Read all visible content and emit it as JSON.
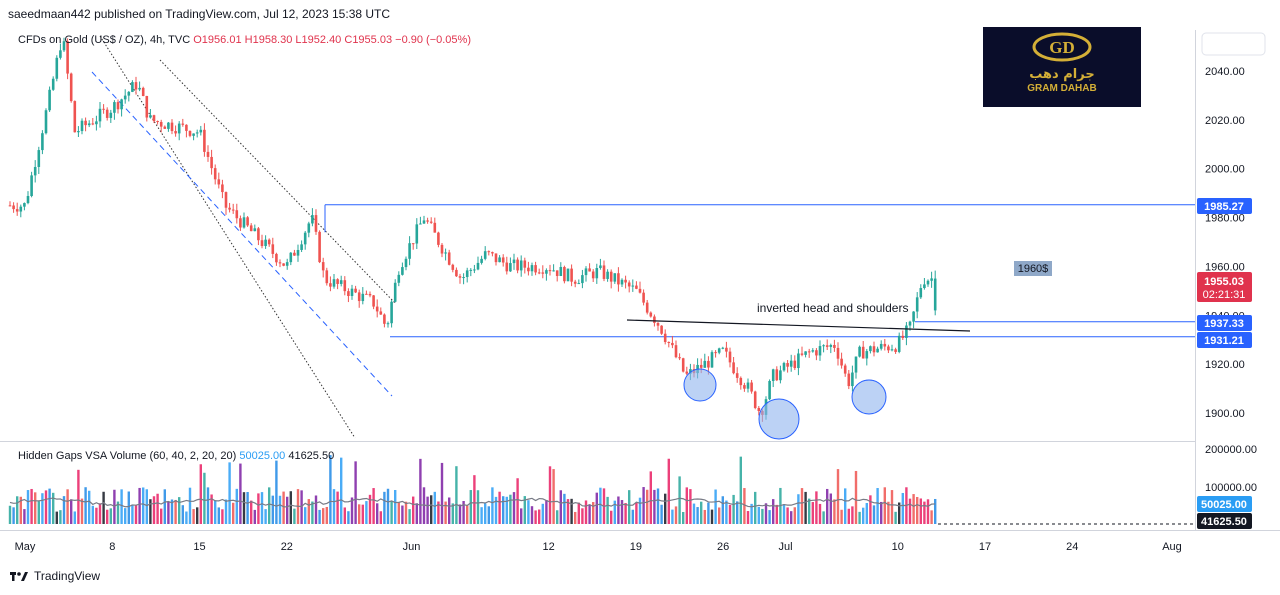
{
  "header": {
    "published_line": "saeedmaan442 published on TradingView.com, Jul 12, 2023 15:38 UTC"
  },
  "legend": {
    "symbol": "CFDs on Gold (US$ / OZ), 4h, TVC",
    "open": "O1956.01",
    "high": "H1958.30",
    "low": "L1952.40",
    "close": "C1955.03",
    "change": "−0.90 (−0.05%)"
  },
  "volume_legend": {
    "name": "Hidden Gaps VSA Volume (60, 40, 2, 20, 20)",
    "value1": "50025.00",
    "value2": "41625.50"
  },
  "logo": {
    "arabic": "جرام دهب",
    "english": "GRAM DAHAB",
    "monogram": "GD"
  },
  "annotation": {
    "pattern_label": "inverted head and shoulders",
    "price_note": "1960$"
  },
  "price_tags": {
    "resistance": "1985.27",
    "last_price": "1955.03",
    "countdown": "02:21:31",
    "neckline_upper": "1937.33",
    "neckline_lower": "1931.21",
    "vol_value1": "50025.00",
    "vol_value2": "41625.50"
  },
  "footer": {
    "brand": "TradingView"
  },
  "colors": {
    "up": "#26a69a",
    "down": "#ef5350",
    "level_line": "#2962ff",
    "tag_blue": "#2962ff",
    "tag_red": "#e0334d",
    "circle_fill": "#90b4ee",
    "logo_gold": "#d4af37"
  },
  "chart_data": {
    "type": "candlestick",
    "y_axis_ticks": [
      "2040.00",
      "2020.00",
      "2000.00",
      "1980.00",
      "1960.00",
      "1940.00",
      "1920.00",
      "1900.00"
    ],
    "x_axis_ticks": [
      "May",
      "8",
      "15",
      "22",
      "Jun",
      "12",
      "19",
      "26",
      "Jul",
      "10",
      "17",
      "24",
      "Aug"
    ],
    "volume_axis_ticks": [
      "200000.00",
      "100000.00"
    ],
    "ylim": [
      1888,
      2058
    ],
    "levels": [
      1985.27,
      1937.33,
      1931.21
    ],
    "series_close_path": [
      {
        "date": "2023-05-01",
        "close": 1985
      },
      {
        "date": "2023-05-03",
        "close": 2030
      },
      {
        "date": "2023-05-04",
        "close": 2055
      },
      {
        "date": "2023-05-05",
        "close": 2015
      },
      {
        "date": "2023-05-08",
        "close": 2025
      },
      {
        "date": "2023-05-10",
        "close": 2035
      },
      {
        "date": "2023-05-11",
        "close": 2020
      },
      {
        "date": "2023-05-15",
        "close": 2015
      },
      {
        "date": "2023-05-17",
        "close": 1985
      },
      {
        "date": "2023-05-19",
        "close": 1975
      },
      {
        "date": "2023-05-22",
        "close": 1960
      },
      {
        "date": "2023-05-24",
        "close": 1980
      },
      {
        "date": "2023-05-25",
        "close": 1955
      },
      {
        "date": "2023-05-29",
        "close": 1945
      },
      {
        "date": "2023-05-30",
        "close": 1935
      },
      {
        "date": "2023-05-31",
        "close": 1960
      },
      {
        "date": "2023-06-02",
        "close": 1980
      },
      {
        "date": "2023-06-05",
        "close": 1955
      },
      {
        "date": "2023-06-07",
        "close": 1965
      },
      {
        "date": "2023-06-09",
        "close": 1960
      },
      {
        "date": "2023-06-12",
        "close": 1960
      },
      {
        "date": "2023-06-14",
        "close": 1955
      },
      {
        "date": "2023-06-16",
        "close": 1958
      },
      {
        "date": "2023-06-19",
        "close": 1950
      },
      {
        "date": "2023-06-21",
        "close": 1935
      },
      {
        "date": "2023-06-23",
        "close": 1915
      },
      {
        "date": "2023-06-26",
        "close": 1925
      },
      {
        "date": "2023-06-28",
        "close": 1910
      },
      {
        "date": "2023-06-29",
        "close": 1900
      },
      {
        "date": "2023-06-30",
        "close": 1915
      },
      {
        "date": "2023-07-03",
        "close": 1925
      },
      {
        "date": "2023-07-05",
        "close": 1928
      },
      {
        "date": "2023-07-06",
        "close": 1912
      },
      {
        "date": "2023-07-07",
        "close": 1925
      },
      {
        "date": "2023-07-10",
        "close": 1928
      },
      {
        "date": "2023-07-11",
        "close": 1935
      },
      {
        "date": "2023-07-12",
        "close": 1955.03
      }
    ]
  }
}
